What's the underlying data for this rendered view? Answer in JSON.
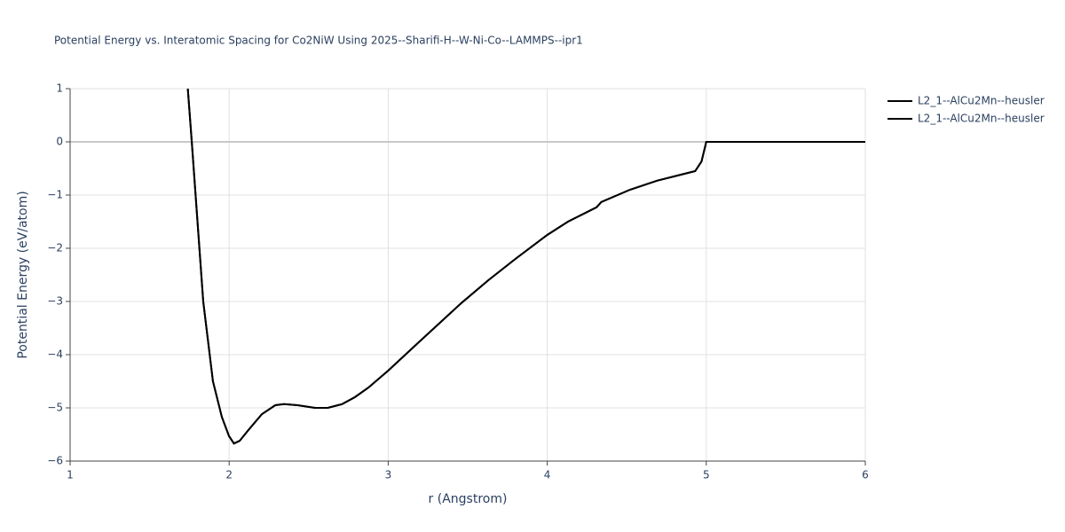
{
  "chart_data": {
    "type": "line",
    "title": "Potential Energy vs. Interatomic Spacing for Co2NiW Using 2025--Sharifi-H--W-Ni-Co--LAMMPS--ipr1",
    "xlabel": "r (Angstrom)",
    "ylabel": "Potential Energy (eV/atom)",
    "x": [
      1.74,
      1.765,
      1.837,
      1.898,
      1.954,
      1.999,
      2.03,
      2.066,
      2.12,
      2.205,
      2.29,
      2.345,
      2.43,
      2.54,
      2.62,
      2.71,
      2.79,
      2.875,
      3.0,
      3.18,
      3.46,
      3.63,
      3.8,
      4.0,
      4.13,
      4.31,
      4.34,
      4.52,
      4.69,
      4.93,
      4.97,
      5.0,
      6.0
    ],
    "series": [
      {
        "name": "L2_1--AlCu2Mn--heusler",
        "color": "#000000",
        "values": [
          1,
          0,
          -3,
          -4.5,
          -5.17,
          -5.53,
          -5.67,
          -5.62,
          -5.42,
          -5.12,
          -4.95,
          -4.93,
          -4.95,
          -5.0,
          -5.0,
          -4.93,
          -4.8,
          -4.62,
          -4.3,
          -3.8,
          -3.03,
          -2.6,
          -2.2,
          -1.75,
          -1.5,
          -1.23,
          -1.13,
          -0.9,
          -0.73,
          -0.55,
          -0.37,
          0,
          0
        ]
      },
      {
        "name": "L2_1--AlCu2Mn--heusler",
        "color": "#000000",
        "values": [
          1,
          0,
          -3,
          -4.5,
          -5.17,
          -5.53,
          -5.67,
          -5.62,
          -5.42,
          -5.12,
          -4.95,
          -4.93,
          -4.95,
          -5.0,
          -5.0,
          -4.93,
          -4.8,
          -4.62,
          -4.3,
          -3.8,
          -3.03,
          -2.6,
          -2.2,
          -1.75,
          -1.5,
          -1.23,
          -1.13,
          -0.9,
          -0.73,
          -0.55,
          -0.37,
          0,
          0
        ]
      }
    ],
    "xlim": [
      1,
      6
    ],
    "xticks": [
      1,
      2,
      3,
      4,
      5,
      6
    ],
    "ylim": [
      -6,
      1
    ],
    "yticks": [
      {
        "value": -6,
        "label": "−6"
      },
      {
        "value": -5,
        "label": "−5"
      },
      {
        "value": -4,
        "label": "−4"
      },
      {
        "value": -3,
        "label": "−3"
      },
      {
        "value": -2,
        "label": "−2"
      },
      {
        "value": -1,
        "label": "−1"
      },
      0,
      1
    ],
    "grid": true,
    "legend": "right"
  }
}
